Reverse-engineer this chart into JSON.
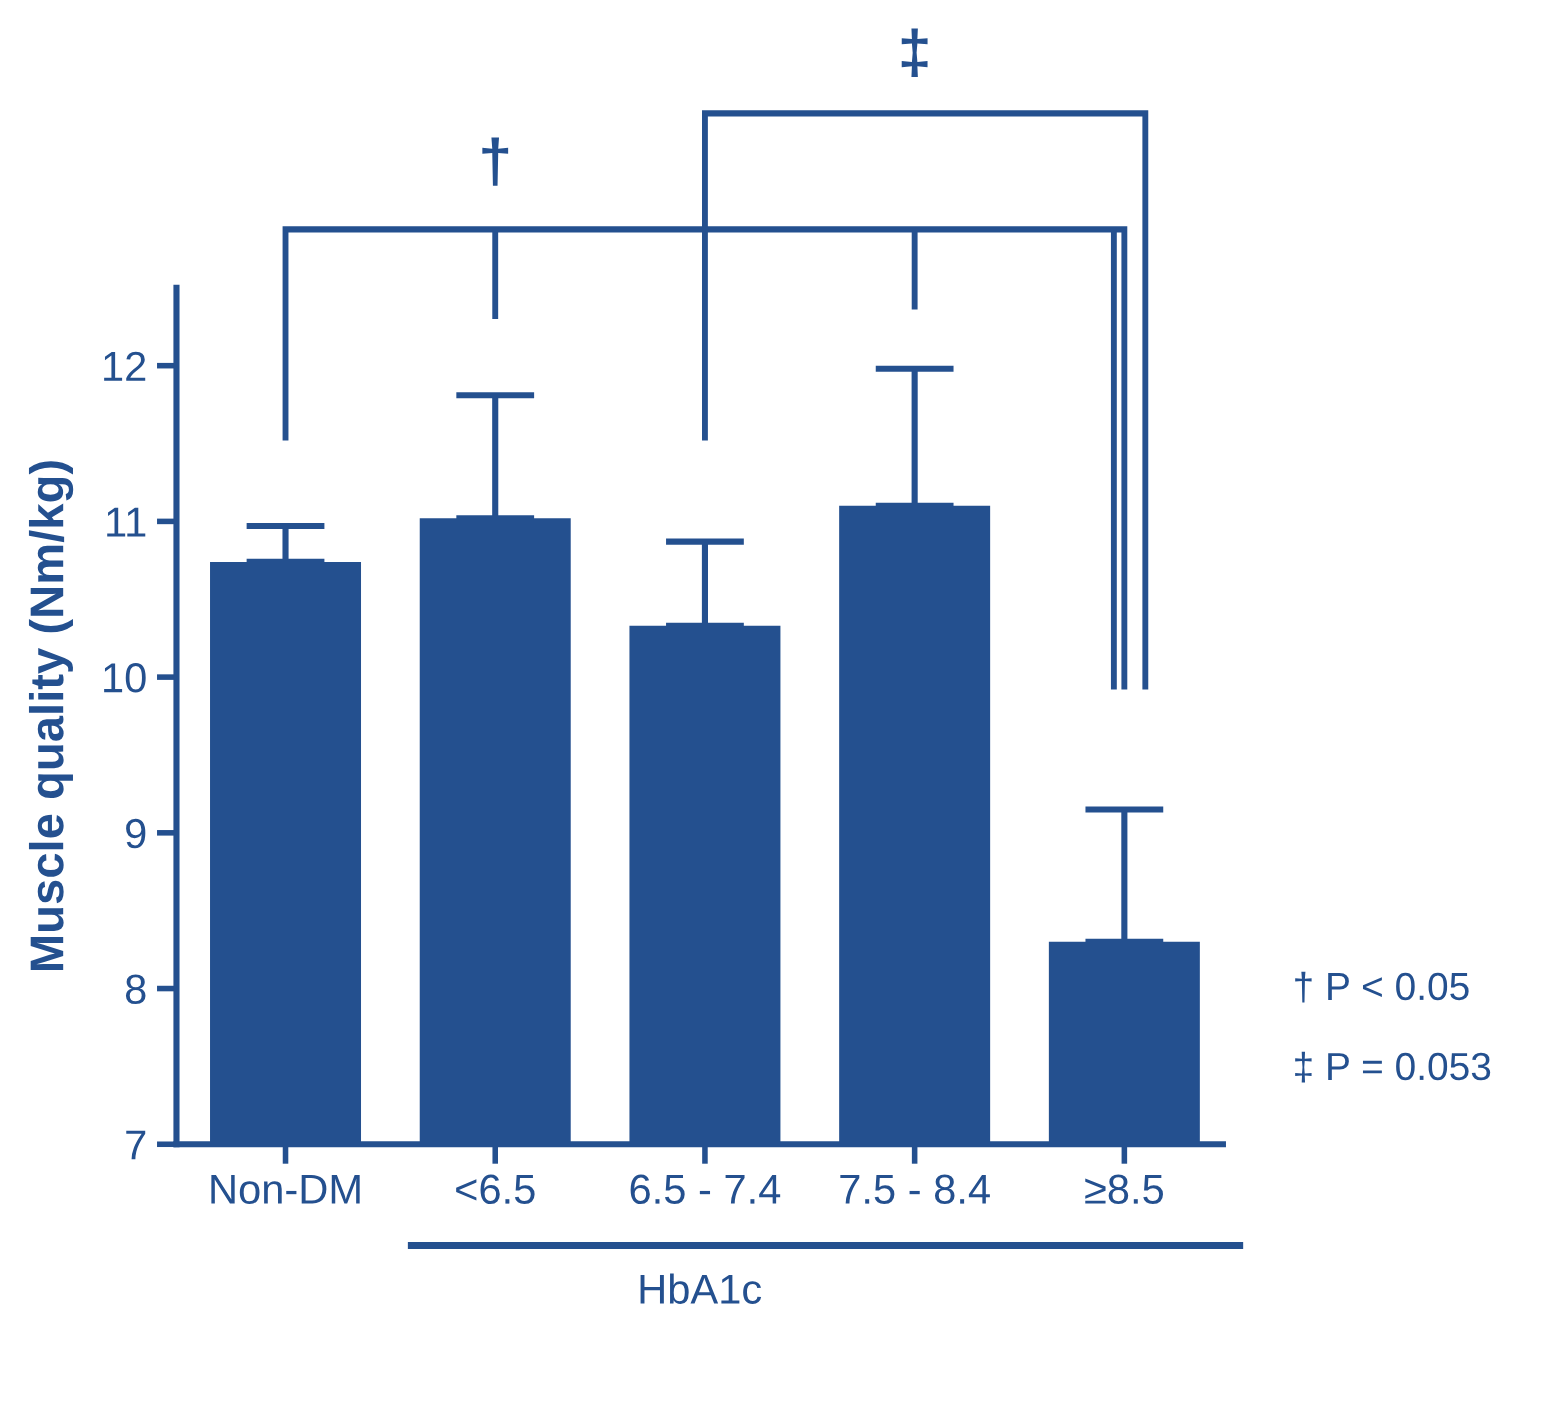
{
  "chart_data": {
    "type": "bar",
    "ylabel": "Muscle quality (Nm/kg)",
    "xlabel": "HbA1c",
    "categories": [
      "Non-DM",
      "<6.5",
      "6.5 - 7.4",
      "7.5 - 8.4",
      "≥8.5"
    ],
    "values": [
      10.74,
      11.02,
      10.33,
      11.1,
      8.3
    ],
    "errors": [
      [
        10.74,
        10.97
      ],
      [
        11.02,
        11.81
      ],
      [
        10.33,
        10.87
      ],
      [
        11.1,
        11.98
      ],
      [
        8.3,
        9.15
      ]
    ],
    "color": "#24508f",
    "ylim": [
      7,
      12.5
    ],
    "yticks": [
      7,
      8,
      9,
      10,
      11,
      12
    ],
    "grid": false,
    "annotations": [
      "†",
      "‡",
      "† P < 0.05",
      "‡ P = 0.053"
    ]
  }
}
